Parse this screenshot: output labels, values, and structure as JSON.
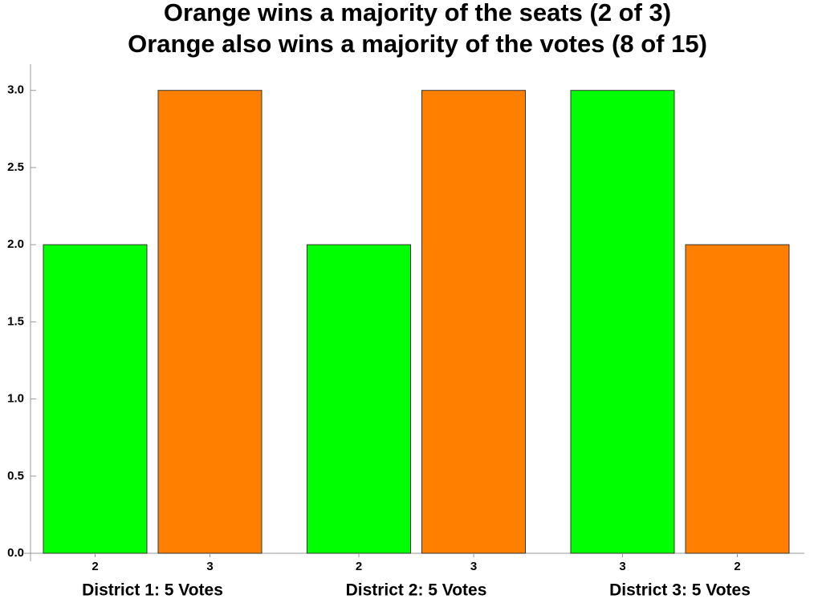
{
  "chart_data": {
    "type": "bar",
    "title": "Orange wins a majority of the seats (2 of 3)",
    "subtitle": "Orange also wins a majority of the votes (8 of 15)",
    "categories": [
      "District 1: 5 Votes",
      "District 2: 5 Votes",
      "District 3: 5 Votes"
    ],
    "series": [
      {
        "color": "#00ff00",
        "values": [
          2,
          2,
          3
        ]
      },
      {
        "color": "#ff8000",
        "values": [
          3,
          3,
          2
        ]
      }
    ],
    "ylim": [
      0,
      3.17
    ],
    "yticks": [
      {
        "value": 0,
        "label": "0.0"
      },
      {
        "value": 0.5,
        "label": "0.5"
      },
      {
        "value": 1,
        "label": "1.0"
      },
      {
        "value": 1.5,
        "label": "1.5"
      },
      {
        "value": 2,
        "label": "2.0"
      },
      {
        "value": 2.5,
        "label": "2.5"
      },
      {
        "value": 3,
        "label": "3.0"
      }
    ],
    "grid": false
  }
}
